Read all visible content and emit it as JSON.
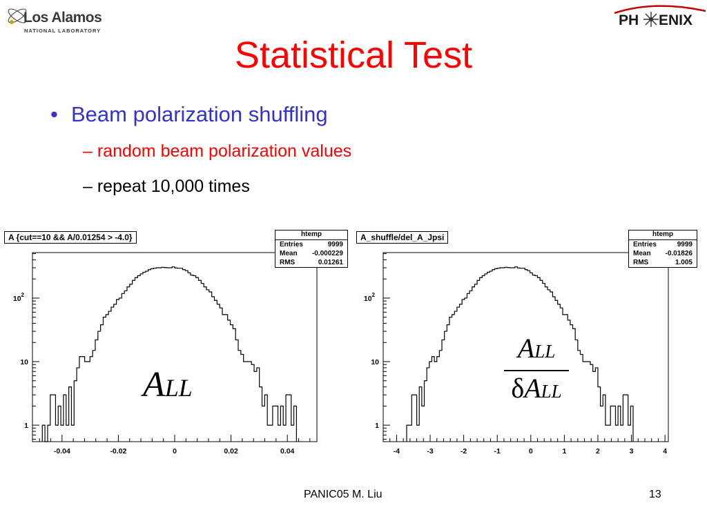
{
  "header": {
    "lanl_logo": {
      "name": "Los Alamos",
      "subtitle": "NATIONAL LABORATORY"
    },
    "phenix_logo": {
      "left": "PH",
      "right": "ENIX"
    }
  },
  "title": "Statistical Test",
  "bullets": {
    "main": "Beam polarization shuffling",
    "sub": [
      {
        "dash": "–",
        "text": "random beam polarization values"
      },
      {
        "dash": "–",
        "text": "repeat 10,000 times"
      }
    ]
  },
  "footer": {
    "text": "PANIC05  M. Liu",
    "page": "13"
  },
  "colors": {
    "title": "#ff0000",
    "main_bullet": "#3333cc",
    "sub_bullet_1": "#ff0000",
    "sub_bullet_2": "#000000"
  },
  "chart_data": [
    {
      "type": "histogram",
      "title": "A {cut==10 && A/0.01254 > -4.0}",
      "stats": {
        "title": "htemp",
        "rows": [
          [
            "Entries",
            "9999"
          ],
          [
            "Mean",
            "-0.000229"
          ],
          [
            "RMS",
            "0.01261"
          ]
        ]
      },
      "annotation": {
        "main": "A",
        "sub": "LL"
      },
      "y_scale": "log",
      "ylim": [
        0.55,
        520
      ],
      "y_ticks": [
        {
          "value": 1,
          "label": "1"
        },
        {
          "value": 10,
          "label": "10"
        },
        {
          "value": 100,
          "label": "10",
          "sup": "2"
        }
      ],
      "xlim": [
        -0.0505,
        0.0505
      ],
      "x_ticks": [
        "-0.04",
        "-0.02",
        "0",
        "0.02",
        "0.04"
      ],
      "x_tick_values": [
        -0.04,
        -0.02,
        0,
        0.02,
        0.04
      ],
      "bin_edges_start": -0.047,
      "bin_width": 0.00094,
      "counts": [
        1,
        0,
        1,
        3,
        3,
        1,
        2,
        1,
        3,
        1,
        4,
        1,
        5,
        8,
        12,
        12,
        10,
        10,
        12,
        15,
        22,
        30,
        38,
        50,
        55,
        62,
        72,
        80,
        95,
        100,
        118,
        130,
        150,
        165,
        190,
        210,
        225,
        240,
        255,
        265,
        280,
        290,
        295,
        300,
        300,
        305,
        302,
        300,
        300,
        310,
        298,
        295,
        295,
        280,
        270,
        250,
        230,
        225,
        210,
        190,
        170,
        150,
        135,
        125,
        105,
        92,
        80,
        70,
        55,
        55,
        45,
        38,
        33,
        22,
        15,
        13,
        10,
        10,
        10,
        9,
        7,
        8,
        4,
        2,
        3,
        1,
        1,
        2,
        2,
        1,
        2,
        1,
        3,
        3,
        1,
        2
      ]
    },
    {
      "type": "histogram",
      "title": "A_shuffle/del_A_Jpsi",
      "stats": {
        "title": "htemp",
        "rows": [
          [
            "Entries",
            "9999"
          ],
          [
            "Mean",
            "-0.01826"
          ],
          [
            "RMS",
            "1.005"
          ]
        ]
      },
      "annotation": {
        "num_main": "A",
        "num_sub": "LL",
        "den_delta": "δ",
        "den_main": "A",
        "den_sub": "LL"
      },
      "y_scale": "log",
      "ylim": [
        0.55,
        520
      ],
      "y_ticks": [
        {
          "value": 1,
          "label": "1"
        },
        {
          "value": 10,
          "label": "10"
        },
        {
          "value": 100,
          "label": "10",
          "sup": "2"
        }
      ],
      "xlim": [
        -4.4,
        4.1
      ],
      "x_ticks": [
        "-4",
        "-3",
        "-2",
        "-1",
        "0",
        "1",
        "2",
        "3",
        "4"
      ],
      "x_tick_values": [
        -4,
        -3,
        -2,
        -1,
        0,
        1,
        2,
        3,
        4
      ],
      "bin_edges_start": -3.7,
      "bin_width": 0.075,
      "counts": [
        1,
        1,
        3,
        3,
        1,
        4,
        2,
        5,
        8,
        10,
        12,
        10,
        12,
        15,
        22,
        30,
        38,
        50,
        55,
        62,
        72,
        80,
        95,
        100,
        118,
        130,
        150,
        165,
        190,
        210,
        225,
        240,
        255,
        265,
        280,
        290,
        295,
        300,
        300,
        305,
        302,
        300,
        300,
        310,
        298,
        295,
        295,
        280,
        270,
        250,
        230,
        225,
        210,
        190,
        170,
        150,
        135,
        125,
        105,
        92,
        80,
        70,
        55,
        55,
        45,
        38,
        33,
        22,
        15,
        13,
        10,
        10,
        10,
        9,
        7,
        8,
        4,
        2,
        3,
        1,
        1,
        2,
        2,
        1,
        2,
        1,
        3,
        3,
        1,
        2
      ]
    }
  ]
}
